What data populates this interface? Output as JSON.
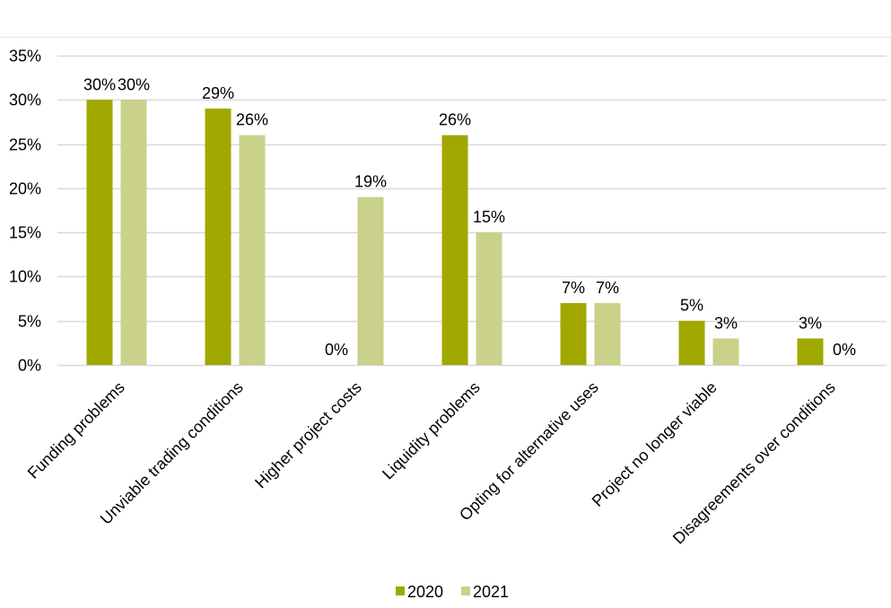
{
  "chart_data": {
    "type": "bar",
    "categories": [
      "Funding problems",
      "Unviable trading conditions",
      "Higher project costs",
      "Liquidity problems",
      "Opting for alternative uses",
      "Project no longer viable",
      "Disagreements over conditions"
    ],
    "series": [
      {
        "name": "2020",
        "values": [
          30,
          29,
          0,
          26,
          7,
          5,
          3
        ],
        "color": "#a0a800"
      },
      {
        "name": "2021",
        "values": [
          30,
          26,
          19,
          15,
          7,
          3,
          0
        ],
        "color": "#c9d18a"
      }
    ],
    "data_labels": {
      "2020": [
        "30%",
        "29%",
        "0%",
        "26%",
        "7%",
        "5%",
        "3%"
      ],
      "2021": [
        "30%",
        "26%",
        "19%",
        "15%",
        "7%",
        "3%",
        "0%"
      ]
    },
    "y_ticks": [
      "0%",
      "5%",
      "10%",
      "15%",
      "20%",
      "25%",
      "30%",
      "35%"
    ],
    "ylim": [
      0,
      35
    ],
    "grid": true,
    "legend_position": "bottom",
    "title": "",
    "xlabel": "",
    "ylabel": ""
  }
}
